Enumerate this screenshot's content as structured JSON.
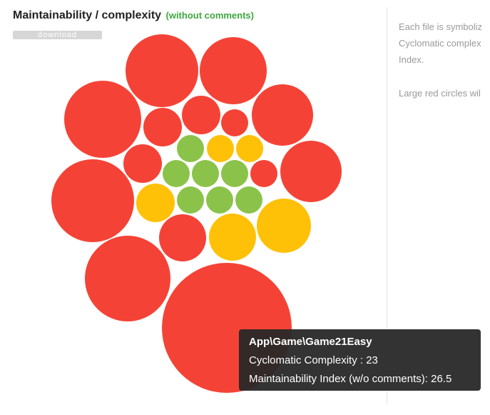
{
  "header": {
    "title": "Maintainability / complexity",
    "subtitle": "(without comments)",
    "download_label": "download"
  },
  "colors": {
    "red": "#f44336",
    "yellow": "#ffc107",
    "green": "#8bc34a"
  },
  "side_text": {
    "line1": "Each file is symboliz",
    "line2": "Cyclomatic complex",
    "line3": "Index.",
    "line4": "Large red circles wil"
  },
  "tooltip": {
    "name": "App\\Game\\Game21Easy",
    "complexity_label": "Cyclomatic Complexity : ",
    "complexity_value": "23",
    "mi_label": "Maintainability Index (w/o comments): ",
    "mi_value": "26.5"
  }
}
